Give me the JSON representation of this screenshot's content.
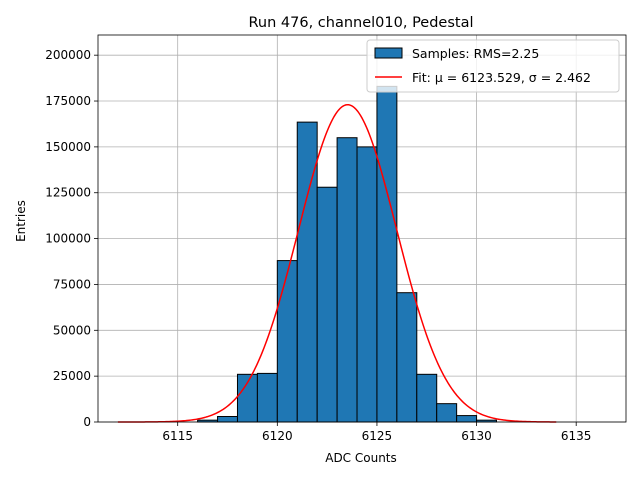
{
  "chart_data": {
    "type": "bar",
    "title": "Run 476, channel010, Pedestal",
    "xlabel": "ADC Counts",
    "ylabel": "Entries",
    "xlim": [
      6111,
      6137.5
    ],
    "ylim": [
      0,
      211000
    ],
    "xticks": [
      6115,
      6120,
      6125,
      6130,
      6135
    ],
    "yticks": [
      0,
      25000,
      50000,
      75000,
      100000,
      125000,
      150000,
      175000,
      200000
    ],
    "grid": true,
    "legend_position": "top-right",
    "histogram": {
      "name": "Samples: RMS=2.25",
      "bin_edges": [
        6116,
        6117,
        6118,
        6119,
        6120,
        6121,
        6122,
        6123,
        6124,
        6125,
        6126,
        6127,
        6128,
        6129,
        6130,
        6131
      ],
      "counts": [
        1000,
        3000,
        26000,
        26500,
        88000,
        163500,
        128000,
        155000,
        150000,
        183000,
        70500,
        26000,
        10000,
        3500,
        1000
      ],
      "color": "#1f77b4",
      "edge_color": "#000000"
    },
    "fit": {
      "name": "Fit: μ = 6123.529, σ = 2.462",
      "mu": 6123.529,
      "sigma": 2.462,
      "amplitude": 173000,
      "x_range": [
        6112,
        6134
      ],
      "color": "#ff0000"
    }
  }
}
